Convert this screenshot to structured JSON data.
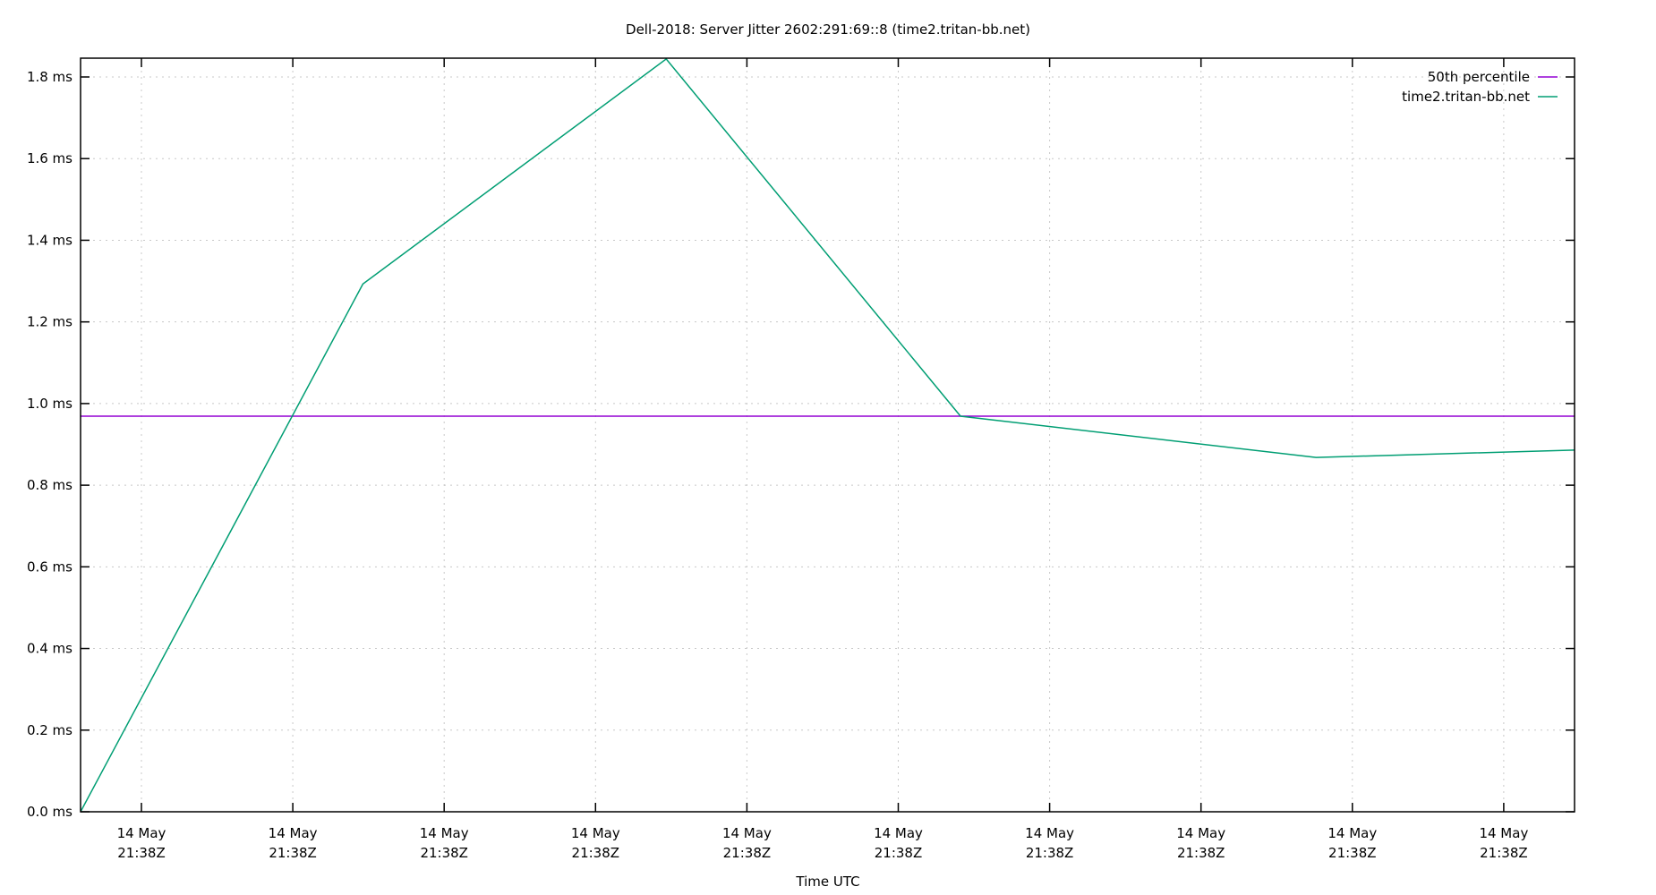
{
  "chart_data": {
    "type": "line",
    "title": "Dell-2018: Server Jitter 2602:291:69::8 (time2.tritan-bb.net)",
    "xlabel": "Time UTC",
    "ylabel": "",
    "ylim": [
      0.0,
      1.844
    ],
    "y_unit": "ms",
    "grid": true,
    "legend_position": "top-right",
    "y_ticks": [
      "0.0 ms",
      "0.2 ms",
      "0.4 ms",
      "0.6 ms",
      "0.8 ms",
      "1.0 ms",
      "1.2 ms",
      "1.4 ms",
      "1.6 ms",
      "1.8 ms"
    ],
    "x_ticks": [
      {
        "line1": "14 May",
        "line2": "21:38Z"
      },
      {
        "line1": "14 May",
        "line2": "21:38Z"
      },
      {
        "line1": "14 May",
        "line2": "21:38Z"
      },
      {
        "line1": "14 May",
        "line2": "21:38Z"
      },
      {
        "line1": "14 May",
        "line2": "21:38Z"
      },
      {
        "line1": "14 May",
        "line2": "21:38Z"
      },
      {
        "line1": "14 May",
        "line2": "21:38Z"
      },
      {
        "line1": "14 May",
        "line2": "21:38Z"
      },
      {
        "line1": "14 May",
        "line2": "21:38Z"
      },
      {
        "line1": "14 May",
        "line2": "21:38Z"
      }
    ],
    "series": [
      {
        "name": "50th percentile",
        "color": "#9400d3",
        "x": [
          0,
          1
        ],
        "values": [
          0.969,
          0.969
        ]
      },
      {
        "name": "time2.tritan-bb.net",
        "color": "#009e73",
        "x": [
          0.0,
          0.189,
          0.392,
          0.589,
          0.827,
          1.0
        ],
        "values": [
          0.0,
          1.293,
          1.844,
          0.969,
          0.868,
          0.886
        ]
      }
    ]
  }
}
